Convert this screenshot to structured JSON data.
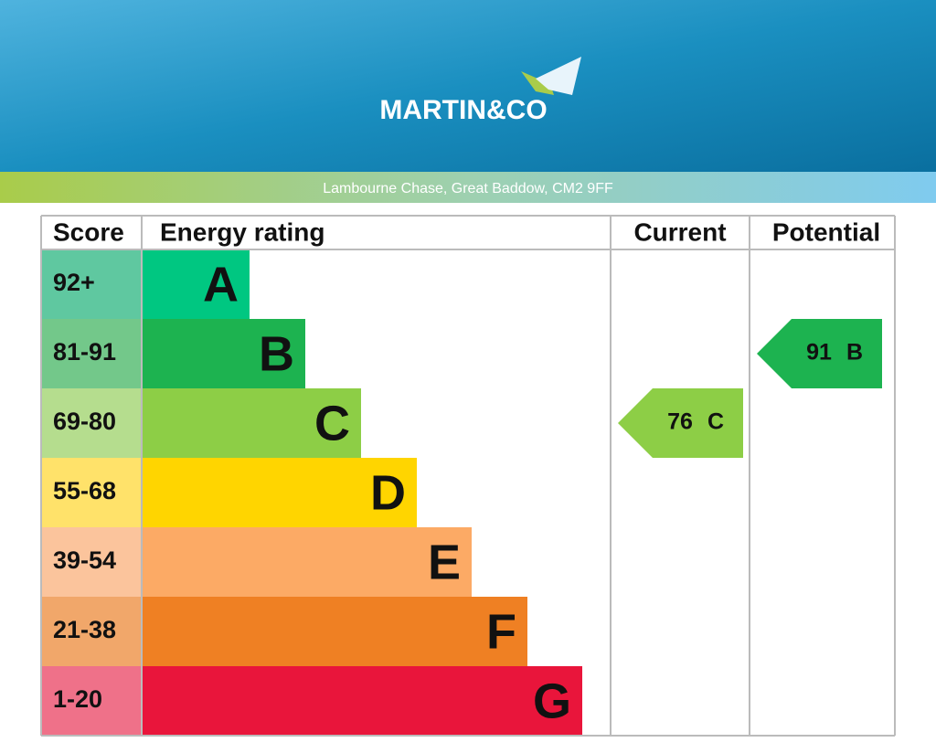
{
  "header": {
    "logo": "MARTIN&CO",
    "address": "Lambourne Chase, Great Baddow, CM2 9FF"
  },
  "table": {
    "columns": [
      "Score",
      "Energy rating",
      "Current",
      "Potential"
    ],
    "rows": [
      {
        "score": "92+",
        "rating": "A",
        "color": "#00c781",
        "light": "#5fc8a0"
      },
      {
        "score": "81-91",
        "rating": "B",
        "color": "#1db350",
        "light": "#73c88a"
      },
      {
        "score": "69-80",
        "rating": "C",
        "color": "#8dce46",
        "light": "#b5dd8e"
      },
      {
        "score": "55-68",
        "rating": "D",
        "color": "#ffd500",
        "light": "#ffe26a"
      },
      {
        "score": "39-54",
        "rating": "E",
        "color": "#fcaa65",
        "light": "#fbc49c"
      },
      {
        "score": "21-38",
        "rating": "F",
        "color": "#ef8023",
        "light": "#f1a76a"
      },
      {
        "score": "1-20",
        "rating": "G",
        "color": "#e9153b",
        "light": "#ef7189"
      }
    ],
    "current": {
      "value": 76,
      "rating": "C"
    },
    "potential": {
      "value": 91,
      "rating": "B"
    }
  }
}
